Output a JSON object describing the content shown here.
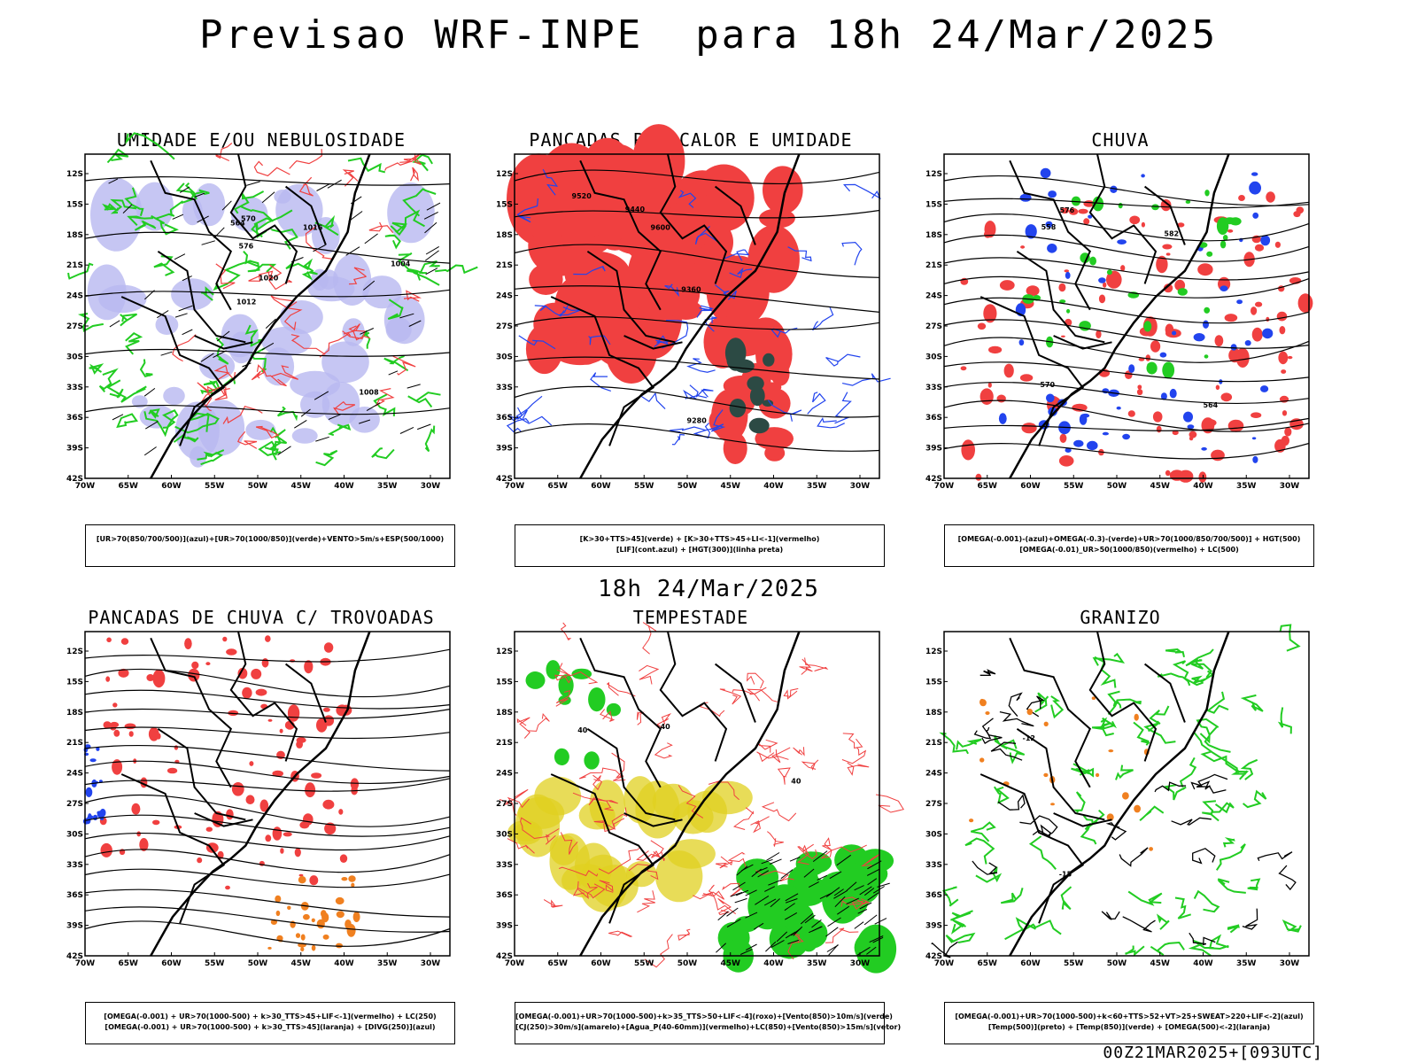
{
  "header": {
    "title": "Previsao WRF-INPE  para 18h 24/Mar/2025"
  },
  "mid_label": "18h 24/Mar/2025",
  "footer_label": "00Z21MAR2025+[093UTC]",
  "axes": {
    "lat_labels": [
      "12S",
      "15S",
      "18S",
      "21S",
      "24S",
      "27S",
      "30S",
      "33S",
      "36S",
      "39S",
      "42S"
    ],
    "lon_labels": [
      "70W",
      "65W",
      "60W",
      "55W",
      "50W",
      "45W",
      "40W",
      "35W",
      "30W"
    ]
  },
  "panels": [
    {
      "title": "UMIDADE E/OU NEBULOSIDADE",
      "legend": [
        "[UR>70(850/700/500)](azul)+[UR>70(1000/850)](verde)+VENTO>5m/s+ESP(500/1000)"
      ],
      "contour_labels": [
        "1008",
        "1012",
        "1016",
        "1020",
        "1004",
        "576",
        "570",
        "564"
      ]
    },
    {
      "title": "PANCADAS POR CALOR E UMIDADE",
      "legend": [
        "[K>30+TTS>45](verde)  +  [K>30+TTS>45+LI<-1](vermelho)",
        "[LIF](cont.azul)  +  [HGT(300)](linha preta)"
      ],
      "contour_labels": [
        "9600",
        "9520",
        "9440",
        "9360",
        "9280"
      ]
    },
    {
      "title": "CHUVA",
      "legend": [
        "[OMEGA(-0.001)-(azul)+OMEGA(-0.3)-(verde)+UR>70(1000/850/700/500)]  +  HGT(500)",
        "[OMEGA(-0.01)_UR>50(1000/850)(vermelho) + LC(500)"
      ],
      "contour_labels": [
        "582",
        "576",
        "570",
        "564",
        "558"
      ]
    },
    {
      "title": "PANCADAS DE CHUVA C/ TROVOADAS",
      "legend": [
        "[OMEGA(-0.001) + UR>70(1000-500) + k>30_TTS>45+LIF<-1](vermelho) + LC(250)",
        "[OMEGA(-0.001) + UR>70(1000-500) + k>30_TTS>45](laranja) + [DIVG(250)](azul)"
      ],
      "contour_labels": []
    },
    {
      "title": "TEMPESTADE",
      "legend": [
        "[OMEGA(-0.001)+UR>70(1000-500)+k>35_TTS>50+LIF<-4](roxo)+[Vento(850)>10m/s](verde)",
        "[CJ(250)>30m/s](amarelo)+[Agua_P(40-60mm)](vermelho)+LC(850)+[Vento(850)>15m/s](vetor)"
      ],
      "contour_labels": [
        "40",
        "40",
        "40"
      ]
    },
    {
      "title": "GRANIZO",
      "legend": [
        "[OMEGA(-0.001)+UR>70(1000-500)+k<60+TTS>52+VT>25+SWEAT>220+LIF<-2](azul)",
        "[Temp(500)](preto) + [Temp(850)](verde) + [OMEGA(500)<-2](laranja)"
      ],
      "contour_labels": [
        "-15",
        "-12"
      ]
    }
  ],
  "colors": {
    "red": "#f04040",
    "green": "#22cc22",
    "blue": "#2244ee",
    "lavender": "#b8b8f0",
    "orange": "#f08020",
    "yellow": "#e0d020",
    "darkteal": "#2c4a44",
    "black": "#000000"
  }
}
